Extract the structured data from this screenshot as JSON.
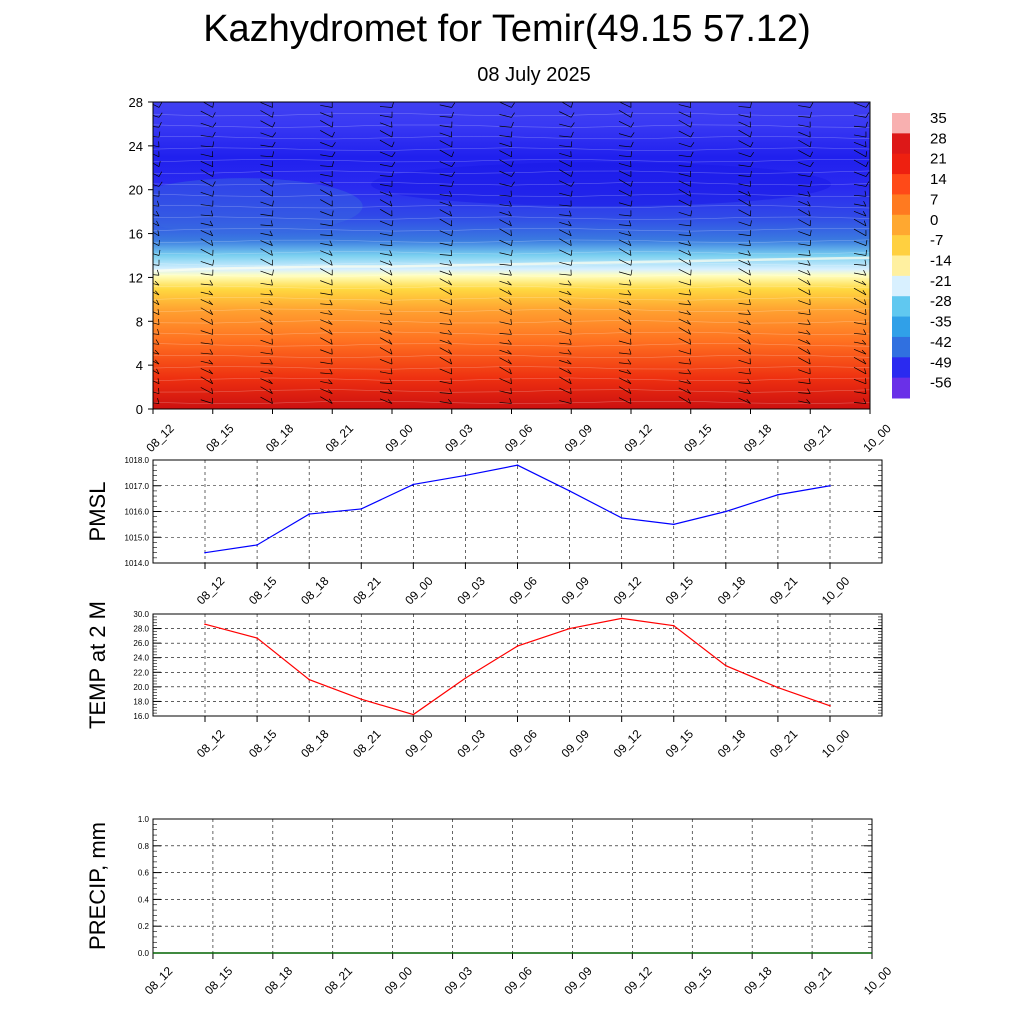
{
  "title": "Kazhydromet for Temir(49.15 57.12)",
  "subtitle": "08 July 2025",
  "chart_data": [
    {
      "type": "heatmap",
      "name": "temperature-wind-cross-section",
      "x_ticks": [
        "08_12",
        "08_15",
        "08_18",
        "08_21",
        "09_00",
        "09_03",
        "09_06",
        "09_09",
        "09_12",
        "09_15",
        "09_18",
        "09_21",
        "10_00"
      ],
      "y_ticks": [
        "0",
        "4",
        "8",
        "12",
        "16",
        "20",
        "24",
        "28"
      ],
      "ylim": [
        0,
        28
      ],
      "colorbar_labels": [
        "35",
        "28",
        "21",
        "14",
        "7",
        "0",
        "-7",
        "-14",
        "-21",
        "-28",
        "-35",
        "-42",
        "-49",
        "-56"
      ],
      "colorbar_range": [
        -60,
        38
      ],
      "colors": [
        "#7a30e8",
        "#2a2af0",
        "#3048e8",
        "#3a7ae0",
        "#7ad0f0",
        "#d8f0ff",
        "#ffffc0",
        "#ffd840",
        "#ffa030",
        "#ff7020",
        "#ee3010",
        "#cc1010",
        "#f0a0a0"
      ],
      "freezing_level": [
        12.6,
        12.8,
        12.9,
        13.0,
        13.0,
        13.1,
        13.2,
        13.3,
        13.4,
        13.5,
        13.6,
        13.7,
        13.8
      ],
      "series": [
        {
          "level": 0,
          "values": [
            24,
            20,
            18,
            17,
            16,
            18,
            22,
            26,
            27,
            24,
            20,
            18,
            17
          ]
        },
        {
          "level": 4,
          "values": [
            15,
            13,
            12,
            12,
            12,
            13,
            15,
            16,
            17,
            16,
            14,
            13,
            13
          ]
        },
        {
          "level": 8,
          "values": [
            5,
            5,
            5,
            5,
            5,
            5,
            6,
            7,
            7,
            7,
            6,
            6,
            6
          ]
        },
        {
          "level": 12,
          "values": [
            -4,
            -4,
            -4,
            -4,
            -4,
            -4,
            -4,
            -3,
            -3,
            -3,
            -3,
            -3,
            -3
          ]
        },
        {
          "level": 16,
          "values": [
            -28,
            -28,
            -28,
            -28,
            -28,
            -27,
            -27,
            -27,
            -27,
            -27,
            -27,
            -27,
            -27
          ]
        },
        {
          "level": 20,
          "values": [
            -45,
            -45,
            -46,
            -46,
            -47,
            -48,
            -50,
            -52,
            -50,
            -50,
            -49,
            -49,
            -49
          ]
        },
        {
          "level": 24,
          "values": [
            -55,
            -56,
            -56,
            -56,
            -56,
            -57,
            -58,
            -58,
            -58,
            -57,
            -57,
            -57,
            -56
          ]
        },
        {
          "level": 28,
          "values": [
            -54,
            -54,
            -53,
            -53,
            -53,
            -54,
            -54,
            -54,
            -54,
            -54,
            -54,
            -54,
            -54
          ]
        }
      ]
    },
    {
      "type": "line",
      "ylabel": "PMSL",
      "ylim": [
        1014.0,
        1018.0
      ],
      "y_ticks": [
        "1014.0",
        "1015.0",
        "1016.0",
        "1017.0",
        "1018.0"
      ],
      "x": [
        "08_12",
        "08_15",
        "08_18",
        "08_21",
        "09_00",
        "09_03",
        "09_06",
        "09_09",
        "09_12",
        "09_15",
        "09_18",
        "09_21",
        "10_00"
      ],
      "values": [
        1014.4,
        1014.7,
        1015.9,
        1016.1,
        1017.05,
        1017.4,
        1017.8,
        1016.8,
        1015.75,
        1015.5,
        1016.0,
        1016.65,
        1017.0
      ],
      "color": "#0000ff",
      "grid": true
    },
    {
      "type": "line",
      "ylabel": "TEMP at 2 M",
      "ylim": [
        16.0,
        30.0
      ],
      "y_ticks": [
        "16.0",
        "18.0",
        "20.0",
        "22.0",
        "24.0",
        "26.0",
        "28.0",
        "30.0"
      ],
      "x": [
        "08_12",
        "08_15",
        "08_18",
        "08_21",
        "09_00",
        "09_03",
        "09_06",
        "09_09",
        "09_12",
        "09_15",
        "09_18",
        "09_21",
        "10_00"
      ],
      "values": [
        28.6,
        26.7,
        21.0,
        18.3,
        16.2,
        21.2,
        25.6,
        28.0,
        29.4,
        28.4,
        22.9,
        19.9,
        17.4
      ],
      "color": "#ff0000",
      "grid": true
    },
    {
      "type": "line",
      "ylabel": "PRECIP, mm",
      "ylim": [
        0.0,
        1.0
      ],
      "y_ticks": [
        "0.0",
        "0.2",
        "0.4",
        "0.6",
        "0.8",
        "1.0"
      ],
      "x": [
        "08_12",
        "08_15",
        "08_18",
        "08_21",
        "09_00",
        "09_03",
        "09_06",
        "09_09",
        "09_12",
        "09_15",
        "09_18",
        "09_21",
        "10_00"
      ],
      "values": [
        0,
        0,
        0,
        0,
        0,
        0,
        0,
        0,
        0,
        0,
        0,
        0,
        0
      ],
      "color": "#006400",
      "grid": true
    }
  ]
}
